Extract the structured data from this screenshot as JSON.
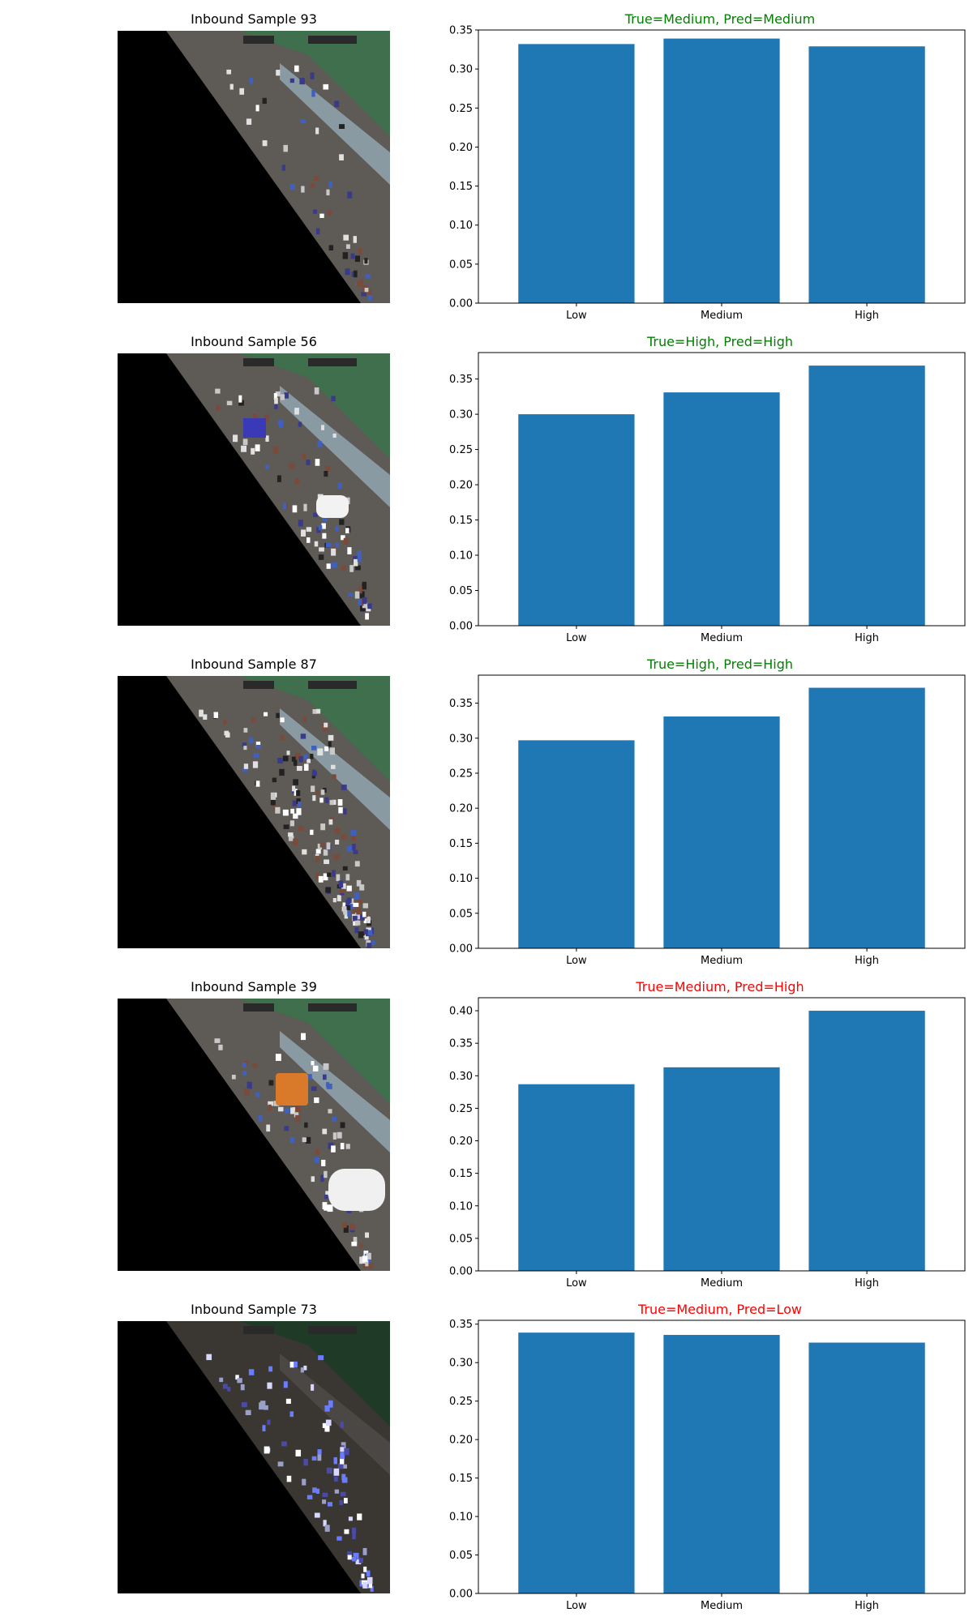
{
  "colors": {
    "bar": "#1f77b4",
    "correct": "#008000",
    "incorrect": "#ff0000"
  },
  "panels": [
    {
      "image_title": "Inbound Sample 93",
      "image_variant": "sparse"
    },
    {
      "image_title": "Inbound Sample 56",
      "image_variant": "cars"
    },
    {
      "image_title": "Inbound Sample 87",
      "image_variant": "dense"
    },
    {
      "image_title": "Inbound Sample 39",
      "image_variant": "bus"
    },
    {
      "image_title": "Inbound Sample 73",
      "image_variant": "night"
    }
  ],
  "chart_data": [
    {
      "type": "bar",
      "title": "True=Medium, Pred=Medium",
      "title_color": "correct",
      "categories": [
        "Low",
        "Medium",
        "High"
      ],
      "values": [
        0.332,
        0.339,
        0.329
      ],
      "ylim": [
        0,
        0.35
      ],
      "yticks": [
        "0.00",
        "0.05",
        "0.10",
        "0.15",
        "0.20",
        "0.25",
        "0.30",
        "0.35"
      ],
      "xlabel": "",
      "ylabel": ""
    },
    {
      "type": "bar",
      "title": "True=High, Pred=High",
      "title_color": "correct",
      "categories": [
        "Low",
        "Medium",
        "High"
      ],
      "values": [
        0.3,
        0.331,
        0.369
      ],
      "ylim": [
        0,
        0.3875
      ],
      "yticks": [
        "0.00",
        "0.05",
        "0.10",
        "0.15",
        "0.20",
        "0.25",
        "0.30",
        "0.35"
      ],
      "xlabel": "",
      "ylabel": ""
    },
    {
      "type": "bar",
      "title": "True=High, Pred=High",
      "title_color": "correct",
      "categories": [
        "Low",
        "Medium",
        "High"
      ],
      "values": [
        0.297,
        0.331,
        0.372
      ],
      "ylim": [
        0,
        0.39
      ],
      "yticks": [
        "0.00",
        "0.05",
        "0.10",
        "0.15",
        "0.20",
        "0.25",
        "0.30",
        "0.35"
      ],
      "xlabel": "",
      "ylabel": ""
    },
    {
      "type": "bar",
      "title": "True=Medium, Pred=High",
      "title_color": "incorrect",
      "categories": [
        "Low",
        "Medium",
        "High"
      ],
      "values": [
        0.287,
        0.313,
        0.4
      ],
      "ylim": [
        0,
        0.42
      ],
      "yticks": [
        "0.00",
        "0.05",
        "0.10",
        "0.15",
        "0.20",
        "0.25",
        "0.30",
        "0.35",
        "0.40"
      ],
      "xlabel": "",
      "ylabel": ""
    },
    {
      "type": "bar",
      "title": "True=Medium, Pred=Low",
      "title_color": "incorrect",
      "categories": [
        "Low",
        "Medium",
        "High"
      ],
      "values": [
        0.339,
        0.336,
        0.326
      ],
      "ylim": [
        0,
        0.355
      ],
      "yticks": [
        "0.00",
        "0.05",
        "0.10",
        "0.15",
        "0.20",
        "0.25",
        "0.30",
        "0.35"
      ],
      "xlabel": "",
      "ylabel": ""
    }
  ]
}
